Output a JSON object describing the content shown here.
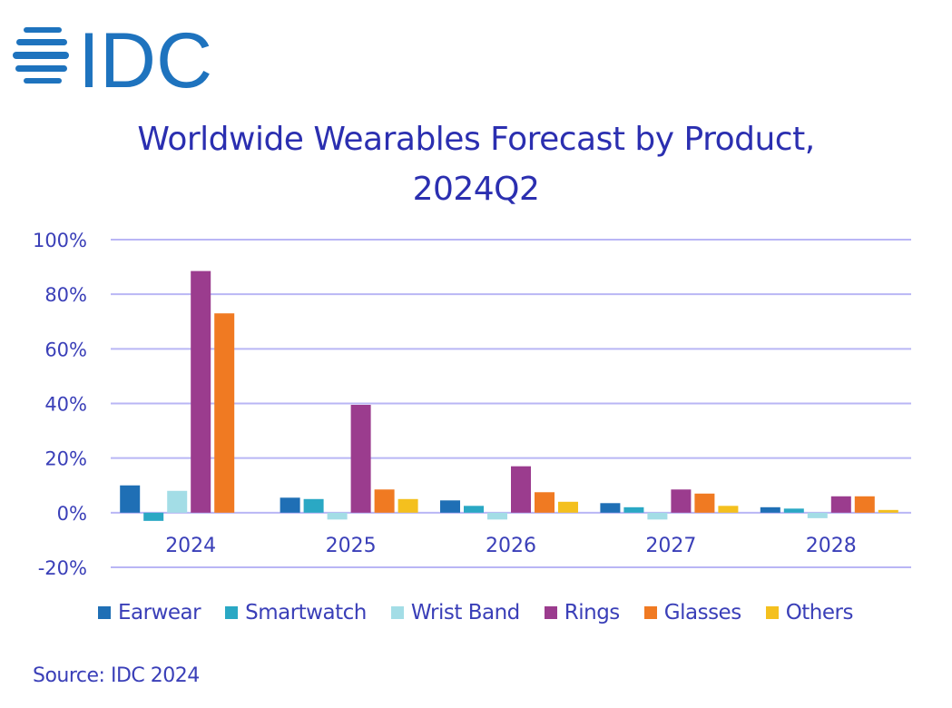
{
  "logo": {
    "text": "IDC",
    "color": "#1e73be"
  },
  "chart_data": {
    "type": "bar",
    "title": "Worldwide Wearables Forecast by Product,",
    "subtitle": "2024Q2",
    "xlabel": "",
    "ylabel": "",
    "ylim": [
      -20,
      100
    ],
    "yticks": [
      100,
      80,
      60,
      40,
      20,
      0,
      -20
    ],
    "ytick_labels": [
      "100%",
      "80%",
      "60%",
      "40%",
      "20%",
      "0%",
      "-20%"
    ],
    "grid": true,
    "legend_position": "bottom",
    "categories": [
      "2024",
      "2025",
      "2026",
      "2027",
      "2028"
    ],
    "series": [
      {
        "name": "Earwear",
        "color": "#1f6fb5",
        "values": [
          10,
          5.5,
          4.5,
          3.5,
          2
        ]
      },
      {
        "name": "Smartwatch",
        "color": "#2aa8c4",
        "values": [
          -3,
          5,
          2.5,
          2,
          1.5
        ]
      },
      {
        "name": "Wrist Band",
        "color": "#a3dde6",
        "values": [
          8,
          -2.5,
          -2.5,
          -2.5,
          -2
        ]
      },
      {
        "name": "Rings",
        "color": "#9b3c8e",
        "values": [
          88.5,
          39.5,
          17,
          8.5,
          6
        ]
      },
      {
        "name": "Glasses",
        "color": "#f07a22",
        "values": [
          73,
          8.5,
          7.5,
          7,
          6
        ]
      },
      {
        "name": "Others",
        "color": "#f4c01e",
        "values": [
          0,
          5,
          4,
          2.5,
          1
        ]
      }
    ],
    "grid_color": "#b9b6f5",
    "text_color": "#3a3fb8"
  },
  "source": "Source: IDC 2024"
}
